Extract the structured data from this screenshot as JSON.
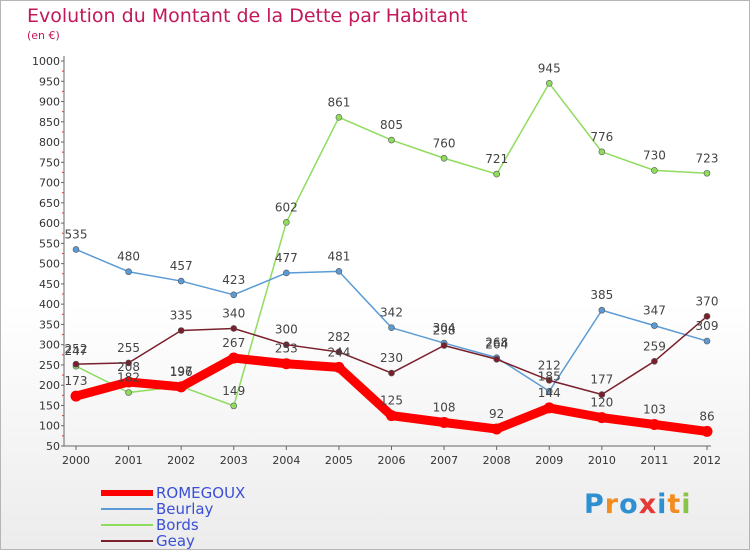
{
  "header": {
    "title": "Evolution du Montant de la Dette par Habitant",
    "unit": "(en €)"
  },
  "logo": {
    "letters": [
      "P",
      "r",
      "o",
      "x",
      "i",
      "t",
      "i"
    ],
    "colors": [
      "#2e8fd1",
      "#f28c1e",
      "#2e8fd1",
      "#e53935",
      "#2e8fd1",
      "#f28c1e",
      "#8bc34a"
    ]
  },
  "chart_data": {
    "type": "line",
    "title": "Evolution du Montant de la Dette par Habitant",
    "ylabel": "(en €)",
    "ylim": [
      50,
      1000
    ],
    "yticks": [
      50,
      100,
      150,
      200,
      250,
      300,
      350,
      400,
      450,
      500,
      550,
      600,
      650,
      700,
      750,
      800,
      850,
      900,
      950,
      1000
    ],
    "x": [
      2000,
      2001,
      2002,
      2003,
      2004,
      2005,
      2006,
      2007,
      2008,
      2009,
      2010,
      2011,
      2012
    ],
    "grid": false,
    "legend": "bottom-left",
    "series": [
      {
        "name": "ROMEGOUX",
        "color": "#ff0000",
        "values": [
          173,
          208,
          196,
          267,
          253,
          244,
          125,
          108,
          92,
          144,
          120,
          103,
          86
        ]
      },
      {
        "name": "Beurlay",
        "color": "#5b9bd5",
        "values": [
          535,
          480,
          457,
          423,
          477,
          481,
          342,
          304,
          268,
          185,
          385,
          347,
          309
        ]
      },
      {
        "name": "Bords",
        "color": "#8fdc5e",
        "values": [
          247,
          182,
          197,
          149,
          602,
          861,
          805,
          760,
          721,
          945,
          776,
          730,
          723
        ]
      },
      {
        "name": "Geay",
        "color": "#7a1f2b",
        "values": [
          252,
          255,
          335,
          340,
          300,
          282,
          230,
          298,
          264,
          212,
          177,
          259,
          370
        ]
      }
    ]
  }
}
